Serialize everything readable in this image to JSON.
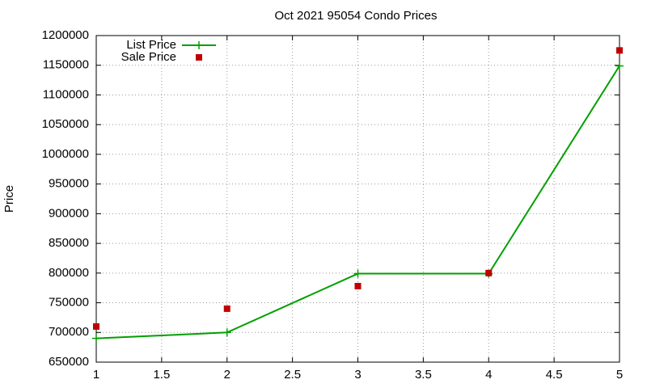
{
  "chart_data": {
    "type": "line",
    "title": "Oct 2021 95054 Condo Prices",
    "y_label": "Price",
    "x": [
      1,
      2,
      3,
      4,
      5
    ],
    "series": [
      {
        "name": "List Price",
        "color": "#00a000",
        "mode": "lines+markers",
        "marker": "plus",
        "values": [
          690000,
          700000,
          799000,
          799000,
          1149000
        ]
      },
      {
        "name": "Sale Price",
        "color": "#c00000",
        "mode": "markers",
        "marker": "square",
        "values": [
          710000,
          740000,
          778000,
          800000,
          1175000
        ]
      }
    ],
    "xlim": [
      1,
      5
    ],
    "xticks": [
      1,
      1.5,
      2,
      2.5,
      3,
      3.5,
      4,
      4.5,
      5
    ],
    "ylim": [
      650000,
      1200000
    ],
    "yticks": [
      650000,
      700000,
      750000,
      800000,
      850000,
      900000,
      950000,
      1000000,
      1050000,
      1100000,
      1150000,
      1200000
    ],
    "grid": true,
    "legend": "top-left"
  }
}
